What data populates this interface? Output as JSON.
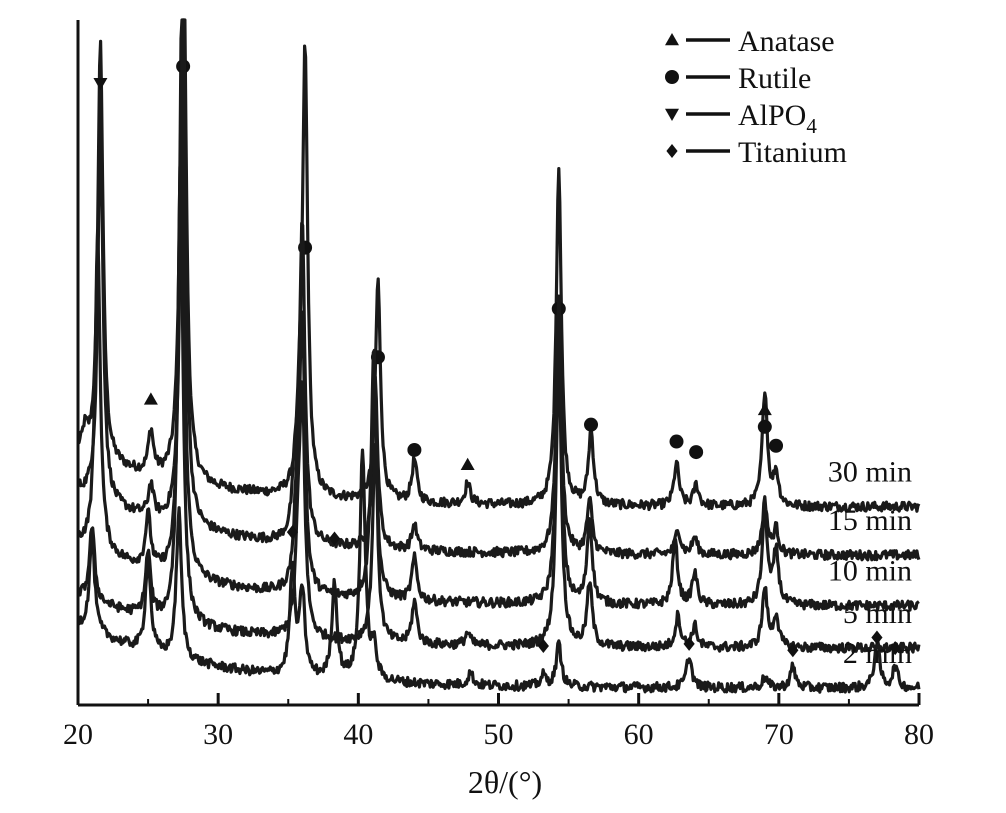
{
  "chart_data": {
    "type": "line",
    "xlabel": "2θ/(°)",
    "xlim": [
      20,
      80
    ],
    "xticks": [
      20,
      30,
      40,
      50,
      60,
      70,
      80
    ],
    "ylabel": "",
    "grid": false,
    "legend_position": "top-right",
    "legend": [
      {
        "name": "Anatase",
        "marker": "triangle-up",
        "symbol": "▲"
      },
      {
        "name": "Rutile",
        "marker": "circle",
        "symbol": "●"
      },
      {
        "name": "AlPO4",
        "marker": "triangle-down",
        "symbol": "▼"
      },
      {
        "name": "Titanium",
        "marker": "diamond",
        "symbol": "◆"
      }
    ],
    "series": [
      {
        "name": "30 min",
        "baseline": 0.94,
        "background": 0.25,
        "peaks": [
          [
            20.5,
            0.1
          ],
          [
            21.6,
            2.0
          ],
          [
            25.2,
            0.2
          ],
          [
            27.5,
            3.1
          ],
          [
            35.8,
            0.25
          ],
          [
            36.2,
            2.1
          ],
          [
            41.4,
            1.05
          ],
          [
            44.0,
            0.2
          ],
          [
            47.8,
            0.1
          ],
          [
            54.3,
            1.6
          ],
          [
            56.6,
            0.35
          ],
          [
            62.7,
            0.2
          ],
          [
            64.1,
            0.1
          ],
          [
            69.0,
            0.55
          ],
          [
            69.8,
            0.15
          ]
        ],
        "markers": [
          {
            "type": "triangle-down",
            "x": 21.6,
            "y": 2.95
          },
          {
            "type": "triangle-up",
            "x": 25.2,
            "y": 1.45
          },
          {
            "type": "circle",
            "x": 27.5,
            "y": 3.03
          },
          {
            "type": "circle",
            "x": 36.2,
            "y": 2.17
          },
          {
            "type": "circle",
            "x": 41.4,
            "y": 1.65
          },
          {
            "type": "circle",
            "x": 44.0,
            "y": 1.21
          },
          {
            "type": "triangle-up",
            "x": 47.8,
            "y": 1.14
          },
          {
            "type": "circle",
            "x": 54.3,
            "y": 1.88
          },
          {
            "type": "circle",
            "x": 56.6,
            "y": 1.33
          },
          {
            "type": "circle",
            "x": 62.7,
            "y": 1.25
          },
          {
            "type": "circle",
            "x": 64.1,
            "y": 1.2
          },
          {
            "type": "triangle-up",
            "x": 69.0,
            "y": 1.4
          },
          {
            "type": "circle",
            "x": 69.0,
            "y": 1.32
          },
          {
            "type": "circle",
            "x": 69.8,
            "y": 1.23
          }
        ]
      },
      {
        "name": "15 min",
        "baseline": 0.71,
        "background": 0.3,
        "peaks": [
          [
            21.6,
            1.8
          ],
          [
            25.2,
            0.15
          ],
          [
            27.5,
            2.6
          ],
          [
            35.5,
            0.3
          ],
          [
            36.0,
            1.5
          ],
          [
            41.2,
            0.8
          ],
          [
            44.0,
            0.12
          ],
          [
            54.3,
            1.2
          ],
          [
            56.5,
            0.25
          ],
          [
            62.8,
            0.12
          ],
          [
            64.0,
            0.08
          ],
          [
            69.0,
            0.25
          ],
          [
            69.8,
            0.12
          ]
        ],
        "markers": []
      },
      {
        "name": "10 min",
        "baseline": 0.47,
        "background": 0.3,
        "peaks": [
          [
            21.4,
            1.5
          ],
          [
            25.0,
            0.25
          ],
          [
            27.4,
            2.4
          ],
          [
            35.6,
            0.35
          ],
          [
            36.0,
            1.3
          ],
          [
            41.1,
            1.2
          ],
          [
            44.0,
            0.2
          ],
          [
            54.3,
            1.4
          ],
          [
            56.5,
            0.4
          ],
          [
            62.6,
            0.3
          ],
          [
            64.0,
            0.15
          ],
          [
            69.0,
            0.45
          ],
          [
            69.8,
            0.25
          ]
        ],
        "markers": []
      },
      {
        "name": "5 min",
        "baseline": 0.27,
        "background": 0.25,
        "peaks": [
          [
            21.0,
            0.35
          ],
          [
            25.0,
            0.3
          ],
          [
            27.3,
            2.2
          ],
          [
            35.7,
            0.35
          ],
          [
            36.0,
            1.1
          ],
          [
            41.2,
            0.95
          ],
          [
            44.0,
            0.2
          ],
          [
            47.8,
            0.06
          ],
          [
            54.3,
            1.4
          ],
          [
            56.5,
            0.3
          ],
          [
            62.8,
            0.15
          ],
          [
            64.0,
            0.1
          ],
          [
            69.0,
            0.28
          ],
          [
            69.8,
            0.15
          ]
        ],
        "markers": []
      },
      {
        "name": "2 min",
        "baseline": 0.08,
        "background": 0.3,
        "peaks": [
          [
            21.0,
            0.45
          ],
          [
            25.0,
            0.45
          ],
          [
            27.2,
            0.7
          ],
          [
            35.3,
            0.5
          ],
          [
            36.0,
            0.4
          ],
          [
            38.3,
            0.45
          ],
          [
            40.3,
            1.1
          ],
          [
            41.1,
            0.15
          ],
          [
            48.0,
            0.06
          ],
          [
            53.2,
            0.05
          ],
          [
            54.3,
            0.2
          ],
          [
            63.6,
            0.15
          ],
          [
            69.0,
            0.05
          ],
          [
            71.0,
            0.1
          ],
          [
            77.0,
            0.22
          ],
          [
            78.3,
            0.1
          ]
        ],
        "markers": [
          {
            "type": "diamond",
            "x": 35.3,
            "y": 0.82
          },
          {
            "type": "diamond",
            "x": 38.3,
            "y": 0.79
          },
          {
            "type": "diamond",
            "x": 53.2,
            "y": 0.28
          },
          {
            "type": "diamond",
            "x": 63.6,
            "y": 0.29
          },
          {
            "type": "diamond",
            "x": 71.0,
            "y": 0.26
          },
          {
            "type": "diamond",
            "x": 77.0,
            "y": 0.32
          },
          {
            "type": "diamond",
            "x": 78.3,
            "y": 0.27
          }
        ]
      }
    ],
    "ylim": [
      0,
      3.25
    ]
  }
}
